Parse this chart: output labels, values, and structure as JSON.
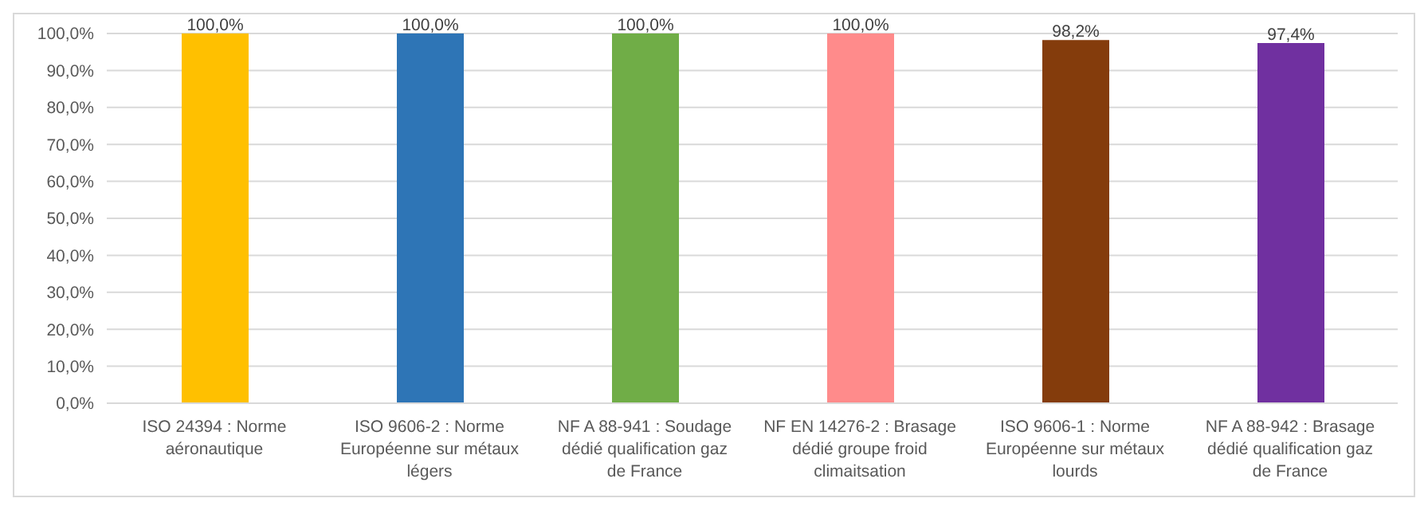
{
  "chart_data": {
    "type": "bar",
    "categories": [
      "ISO 24394 : Norme aéronautique",
      "ISO 9606-2 : Norme Européenne sur métaux légers",
      "NF A 88-941 : Soudage dédié qualification gaz de France",
      "NF EN 14276-2 : Brasage dédié groupe froid climaitsation",
      "ISO 9606-1 : Norme Européenne sur métaux lourds",
      "NF A 88-942 : Brasage dédié qualification gaz de France"
    ],
    "values": [
      100,
      100,
      100,
      100,
      98.2,
      97.4
    ],
    "colors": [
      "#ffc000",
      "#2e75b6",
      "#70ad47",
      "#ff8b8b",
      "#843c0c",
      "#7030a0"
    ],
    "value_labels": [
      "100,0%",
      "100,0%",
      "100,0%",
      "100,0%",
      "98,2%",
      "97,4%"
    ],
    "ylim": [
      0,
      100
    ],
    "yticks": [
      {
        "value": 0,
        "label": "0,0%"
      },
      {
        "value": 10,
        "label": "10,0%"
      },
      {
        "value": 20,
        "label": "20,0%"
      },
      {
        "value": 30,
        "label": "30,0%"
      },
      {
        "value": 40,
        "label": "40,0%"
      },
      {
        "value": 50,
        "label": "50,0%"
      },
      {
        "value": 60,
        "label": "60,0%"
      },
      {
        "value": 70,
        "label": "70,0%"
      },
      {
        "value": 80,
        "label": "80,0%"
      },
      {
        "value": 90,
        "label": "90,0%"
      },
      {
        "value": 100,
        "label": "100,0%"
      }
    ],
    "grid": "y",
    "legend": false
  }
}
